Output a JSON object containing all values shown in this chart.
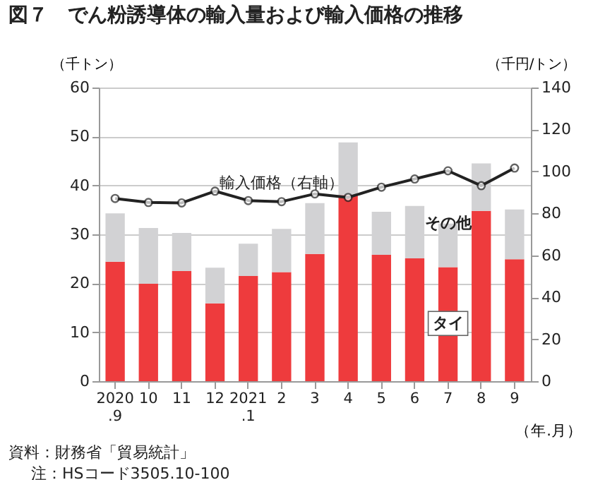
{
  "chart_data": {
    "type": "bar",
    "title": "図７　でん粉誘導体の輸入量および輸入価格の推移",
    "xlabel": "（年.月）",
    "ylabel": "（千トン）",
    "y2label": "（千円/トン）",
    "categories": [
      "2020\n.9",
      "10",
      "11",
      "12",
      "2021\n.1",
      "2",
      "3",
      "4",
      "5",
      "6",
      "7",
      "8",
      "9"
    ],
    "stacked": true,
    "series": [
      {
        "name": "タイ",
        "color": "#ee3b3d",
        "values": [
          24.4,
          19.9,
          22.5,
          15.9,
          21.5,
          22.3,
          26.0,
          38.0,
          25.8,
          25.1,
          23.3,
          34.8,
          24.9
        ]
      },
      {
        "name": "その他",
        "color": "#d2d2d4",
        "values": [
          9.9,
          11.4,
          7.8,
          7.3,
          6.6,
          8.8,
          10.4,
          10.8,
          8.8,
          10.7,
          8.9,
          9.7,
          10.2
        ]
      },
      {
        "name": "輸入価格（右軸）",
        "type": "line",
        "axis": "y2",
        "color": "#222222",
        "values": [
          87.1,
          85.2,
          85.0,
          90.6,
          86.1,
          85.6,
          89.3,
          87.6,
          92.5,
          96.4,
          100.3,
          93.2,
          101.6
        ]
      }
    ],
    "ylim": [
      0,
      60
    ],
    "yticks": [
      0,
      10,
      20,
      30,
      40,
      50,
      60
    ],
    "y2lim": [
      0,
      140
    ],
    "y2ticks": [
      0,
      20,
      40,
      60,
      80,
      100,
      120,
      140
    ],
    "grid": "y",
    "marker": "circle",
    "line_style": "solid",
    "annotations": [
      "資料：財務省「貿易統計」",
      "注：HSコード3505.10-100"
    ]
  }
}
